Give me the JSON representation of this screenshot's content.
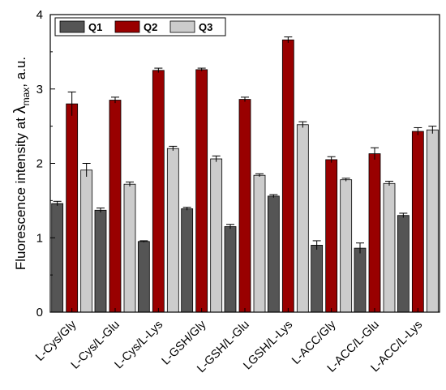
{
  "chart_data": {
    "type": "bar",
    "categories": [
      "L-Cys/Gly",
      "L-Cys/L-Glu",
      "L-Cys/L-Lys",
      "L-GSH/Gly",
      "L-GSH/L-Glu",
      "LGSH/L-Lys",
      "L-ACC/Gly",
      "L-ACC/L-Glu",
      "L-ACC/L-Lys"
    ],
    "series": [
      {
        "name": "Q1",
        "color": "#555555",
        "values": [
          1.46,
          1.37,
          0.95,
          1.39,
          1.15,
          1.56,
          0.9,
          0.86,
          1.3
        ],
        "errors": [
          0.03,
          0.03,
          0.01,
          0.02,
          0.03,
          0.02,
          0.06,
          0.07,
          0.03
        ]
      },
      {
        "name": "Q2",
        "color": "#990000",
        "values": [
          2.8,
          2.85,
          3.25,
          3.26,
          2.86,
          3.66,
          2.05,
          2.13,
          2.43
        ],
        "errors": [
          0.16,
          0.04,
          0.03,
          0.02,
          0.03,
          0.04,
          0.04,
          0.08,
          0.05
        ]
      },
      {
        "name": "Q3",
        "color": "#cccccc",
        "values": [
          1.91,
          1.72,
          2.2,
          2.06,
          1.84,
          2.52,
          1.78,
          1.73,
          2.45
        ],
        "errors": [
          0.09,
          0.03,
          0.03,
          0.04,
          0.02,
          0.04,
          0.02,
          0.03,
          0.05
        ]
      }
    ],
    "ylabel_main": "Fluorescence intensity at ",
    "ylabel_lambda": "λ",
    "ylabel_sub": "max",
    "ylabel_tail": ", a.u.",
    "ylim": [
      0,
      4
    ],
    "yticks": [
      "0",
      "1",
      "2",
      "3",
      "4"
    ],
    "legend": {
      "placement": "top-left",
      "entries": [
        "Q1",
        "Q2",
        "Q3"
      ]
    },
    "grid": false
  }
}
